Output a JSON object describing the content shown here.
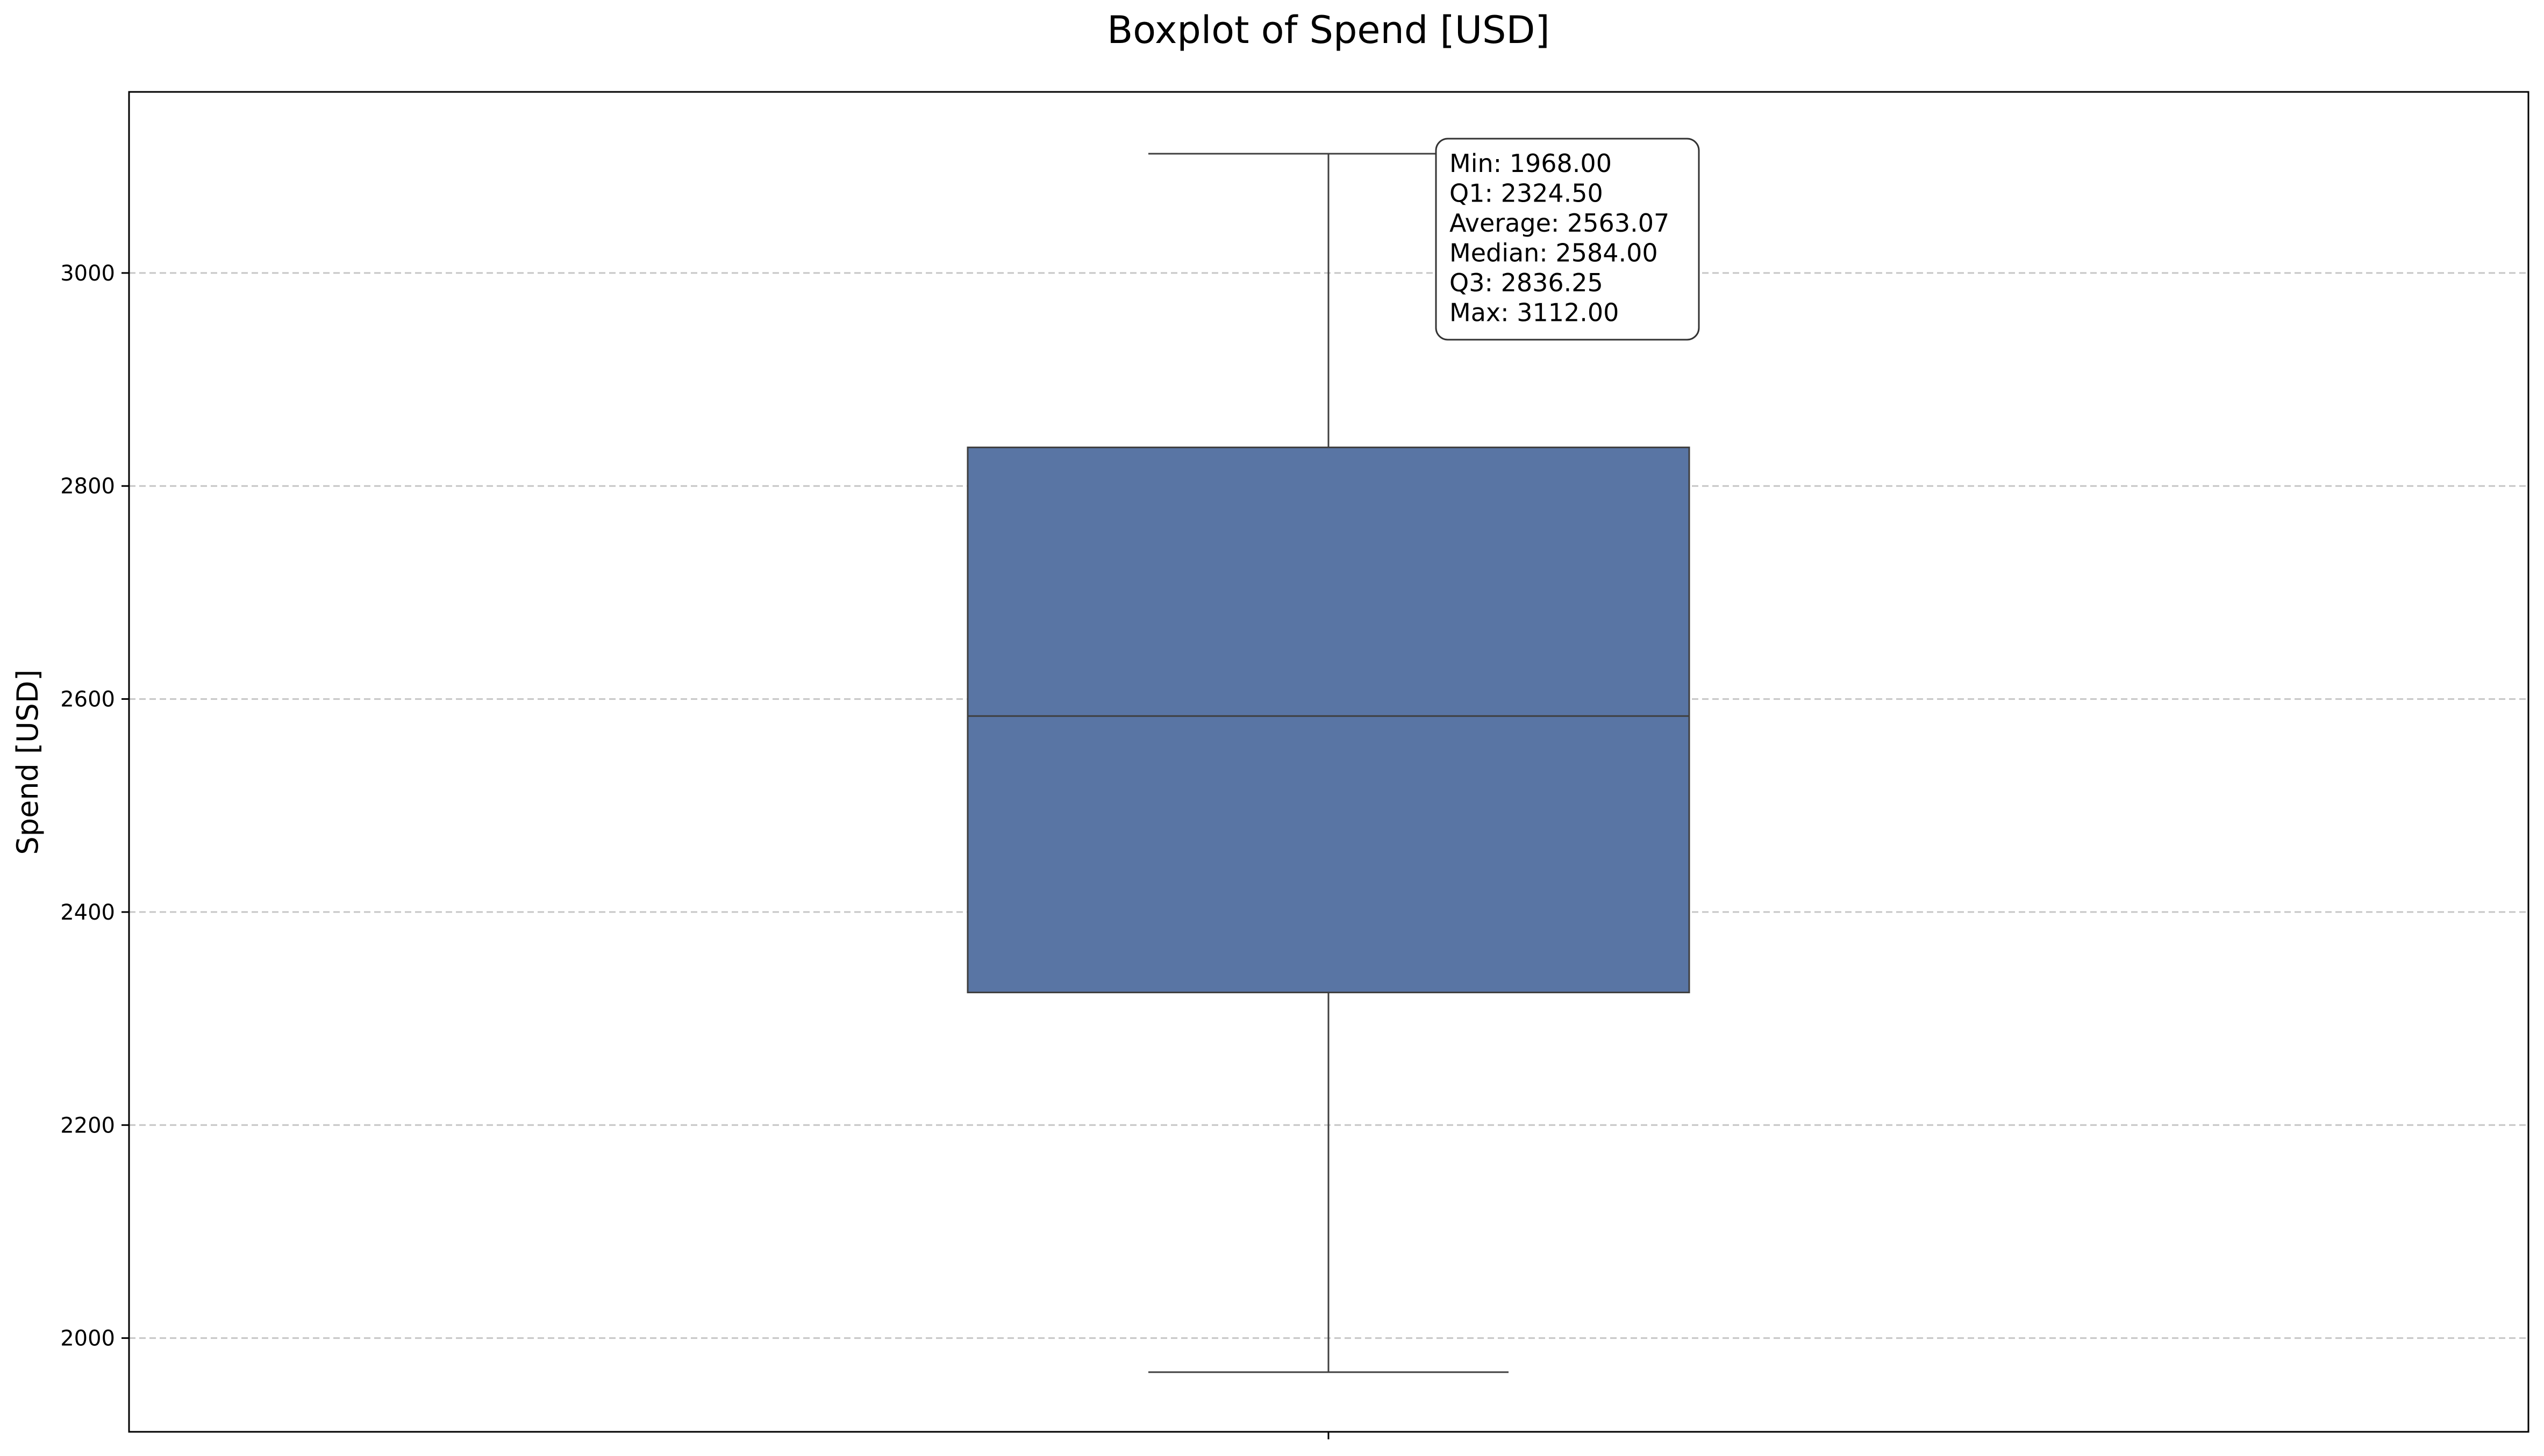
{
  "chart_data": {
    "type": "box",
    "title": "Boxplot of Spend [USD]",
    "xlabel": "",
    "ylabel": "Spend [USD]",
    "ylim": [
      1912,
      3170
    ],
    "yticks": [
      2000,
      2200,
      2400,
      2600,
      2800,
      3000
    ],
    "grid": true,
    "box": {
      "min": 1968.0,
      "q1": 2324.5,
      "median": 2584.0,
      "average": 2563.07,
      "q3": 2836.25,
      "max": 3112.0,
      "color": "#5975a4"
    },
    "stats_annotation": {
      "position": "top-right of whisker",
      "lines": [
        "Min: 1968.00",
        "Q1: 2324.50",
        "Average: 2563.07",
        "Median: 2584.00",
        "Q3: 2836.25",
        "Max: 3112.00"
      ]
    }
  }
}
